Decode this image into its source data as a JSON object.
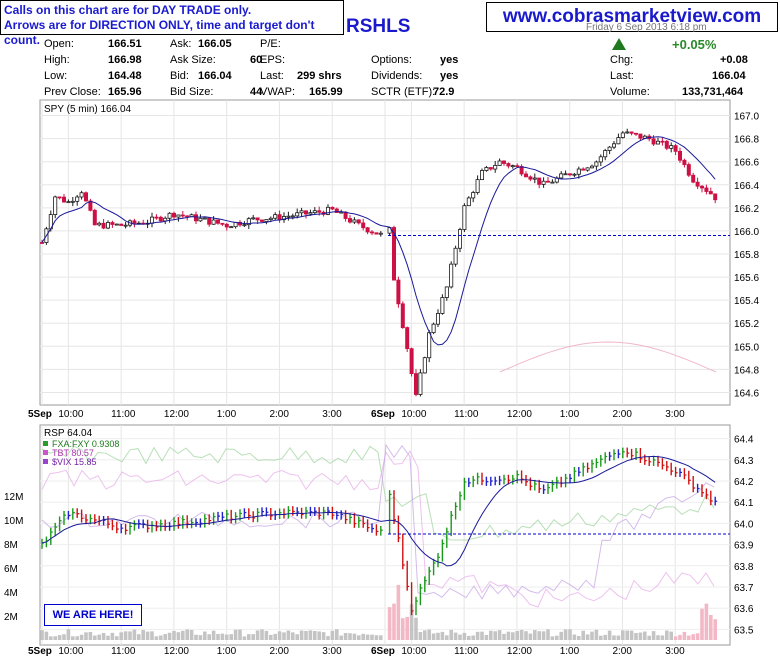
{
  "header": {
    "note_line1": "Calls on this chart are for DAY TRADE only.",
    "note_line2": "Arrows are for DIRECTION ONLY, time and target don't count.",
    "site": "www.cobrasmarketview.com",
    "ticker_suffix": "RSHLS",
    "date_fragment": "Friday 6 Sep 2013 6:18 pm"
  },
  "quote": {
    "open_label": "Open:",
    "open": "166.51",
    "high_label": "High:",
    "high": "166.98",
    "low_label": "Low:",
    "low": "164.48",
    "prev_label": "Prev Close:",
    "prev": "165.96",
    "ask_label": "Ask:",
    "ask": "166.05",
    "asksize_label": "Ask Size:",
    "asksize": "60",
    "bid_label": "Bid:",
    "bid": "166.04",
    "bidsize_label": "Bid Size:",
    "bidsize": "44",
    "pe_label": "P/E:",
    "eps_label": "EPS:",
    "last_label": "Last:",
    "last": "299 shrs",
    "vwap_label": "VWAP:",
    "vwap": "165.99",
    "options_label": "Options:",
    "options": "yes",
    "dividends_label": "Dividends:",
    "dividends": "yes",
    "sctr_label": "SCTR (ETF):",
    "sctr": "72.9",
    "chg_pct": "+0.05%",
    "chg_label": "Chg:",
    "chg": "+0.08",
    "last2_label": "Last:",
    "last2": "166.04",
    "volume_label": "Volume:",
    "volume": "133,731,464"
  },
  "warning": "WE ARE HERE!",
  "colors": {
    "up": "#1a1a1a",
    "down": "#cc1144",
    "ma": "#1a1a99",
    "refline": "#0000cc"
  },
  "chart_data": [
    {
      "type": "candlestick",
      "title": "SPY (5 min) 166.04",
      "ylim": [
        164.5,
        167.1
      ],
      "yticks": [
        "164.6",
        "164.8",
        "165.0",
        "165.2",
        "165.4",
        "165.6",
        "165.8",
        "166.0",
        "166.2",
        "166.4",
        "166.6",
        "166.8",
        "167.0"
      ],
      "xticks": [
        "5Sep",
        "10:00",
        "11:00",
        "12:00",
        "1:00",
        "2:00",
        "3:00",
        "6Sep",
        "10:00",
        "11:00",
        "12:00",
        "1:00",
        "2:00",
        "3:00"
      ],
      "reference_line": 165.96,
      "close_series_approx": [
        {
          "t": "5Sep 09:30",
          "v": 165.9
        },
        {
          "t": "5Sep 09:45",
          "v": 166.3
        },
        {
          "t": "5Sep 10:00",
          "v": 166.25
        },
        {
          "t": "5Sep 10:15",
          "v": 166.35
        },
        {
          "t": "5Sep 10:30",
          "v": 166.05
        },
        {
          "t": "5Sep 11:00",
          "v": 166.05
        },
        {
          "t": "5Sep 11:30",
          "v": 166.08
        },
        {
          "t": "5Sep 12:00",
          "v": 166.15
        },
        {
          "t": "5Sep 12:30",
          "v": 166.1
        },
        {
          "t": "5Sep 13:00",
          "v": 166.05
        },
        {
          "t": "5Sep 13:30",
          "v": 166.1
        },
        {
          "t": "5Sep 14:00",
          "v": 166.12
        },
        {
          "t": "5Sep 14:30",
          "v": 166.15
        },
        {
          "t": "5Sep 15:00",
          "v": 166.18
        },
        {
          "t": "5Sep 15:30",
          "v": 166.05
        },
        {
          "t": "5Sep 16:00",
          "v": 165.95
        },
        {
          "t": "6Sep 09:30",
          "v": 166.45
        },
        {
          "t": "6Sep 09:40",
          "v": 165.6
        },
        {
          "t": "6Sep 09:55",
          "v": 165.0
        },
        {
          "t": "6Sep 10:05",
          "v": 164.55
        },
        {
          "t": "6Sep 10:20",
          "v": 165.1
        },
        {
          "t": "6Sep 10:40",
          "v": 165.5
        },
        {
          "t": "6Sep 11:00",
          "v": 166.2
        },
        {
          "t": "6Sep 11:20",
          "v": 166.5
        },
        {
          "t": "6Sep 11:40",
          "v": 166.6
        },
        {
          "t": "6Sep 12:00",
          "v": 166.55
        },
        {
          "t": "6Sep 12:30",
          "v": 166.4
        },
        {
          "t": "6Sep 13:00",
          "v": 166.5
        },
        {
          "t": "6Sep 13:30",
          "v": 166.6
        },
        {
          "t": "6Sep 14:00",
          "v": 166.85
        },
        {
          "t": "6Sep 14:30",
          "v": 166.8
        },
        {
          "t": "6Sep 15:00",
          "v": 166.7
        },
        {
          "t": "6Sep 15:20",
          "v": 166.45
        },
        {
          "t": "6Sep 15:45",
          "v": 166.3
        },
        {
          "t": "6Sep 16:00",
          "v": 166.04
        }
      ]
    },
    {
      "type": "line",
      "title": "RSP 64.04",
      "series": [
        {
          "name": "RSP",
          "last": "64.04"
        },
        {
          "name": "FXA:FXY",
          "last": "0.9308"
        },
        {
          "name": "TBT",
          "last": "80.57"
        },
        {
          "name": "$VIX",
          "last": "15.85"
        }
      ],
      "ylim_right": [
        63.45,
        64.45
      ],
      "yticks_right": [
        "63.5",
        "63.6",
        "63.7",
        "63.8",
        "63.9",
        "64.0",
        "64.1",
        "64.2",
        "64.3",
        "64.4"
      ],
      "yticks_left": [
        "2M",
        "4M",
        "6M",
        "8M",
        "10M",
        "12M"
      ],
      "reference_line": 63.95,
      "rsp_close_approx": [
        {
          "t": "5Sep 09:30",
          "v": 63.9
        },
        {
          "t": "5Sep 10:00",
          "v": 64.05
        },
        {
          "t": "5Sep 11:00",
          "v": 63.98
        },
        {
          "t": "5Sep 12:00",
          "v": 64.0
        },
        {
          "t": "5Sep 13:00",
          "v": 64.03
        },
        {
          "t": "5Sep 14:00",
          "v": 64.05
        },
        {
          "t": "5Sep 15:00",
          "v": 64.05
        },
        {
          "t": "5Sep 16:00",
          "v": 63.95
        },
        {
          "t": "6Sep 09:30",
          "v": 64.25
        },
        {
          "t": "6Sep 10:00",
          "v": 63.6
        },
        {
          "t": "6Sep 10:30",
          "v": 63.85
        },
        {
          "t": "6Sep 11:00",
          "v": 64.2
        },
        {
          "t": "6Sep 12:00",
          "v": 64.22
        },
        {
          "t": "6Sep 12:30",
          "v": 64.15
        },
        {
          "t": "6Sep 13:00",
          "v": 64.22
        },
        {
          "t": "6Sep 14:00",
          "v": 64.35
        },
        {
          "t": "6Sep 15:00",
          "v": 64.25
        },
        {
          "t": "6Sep 15:45",
          "v": 64.1
        },
        {
          "t": "6Sep 16:00",
          "v": 64.04
        }
      ],
      "volume_note": "volume bars in millions (left axis)"
    }
  ]
}
